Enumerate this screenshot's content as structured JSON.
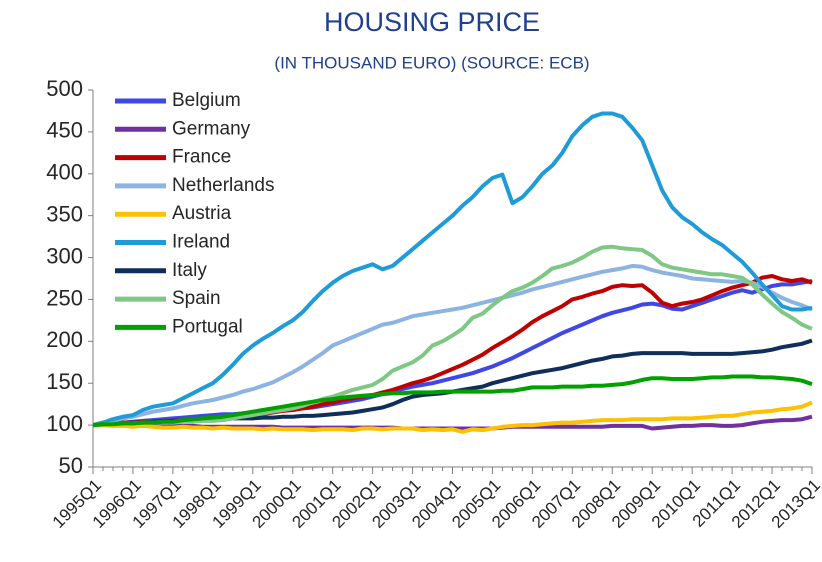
{
  "chart_data": {
    "type": "line",
    "title": "HOUSING PRICE",
    "subtitle": "(IN THOUSAND EURO) (SOURCE: ECB)",
    "categories": [
      "1995Q1",
      null,
      null,
      null,
      "1996Q1",
      null,
      null,
      null,
      "1997Q1",
      null,
      null,
      null,
      "1998Q1",
      null,
      null,
      null,
      "1999Q1",
      null,
      null,
      null,
      "2000Q1",
      null,
      null,
      null,
      "2001Q1",
      null,
      null,
      null,
      "2002Q1",
      null,
      null,
      null,
      "2003Q1",
      null,
      null,
      null,
      "2004Q1",
      null,
      null,
      null,
      "2005Q1",
      null,
      null,
      null,
      "2006Q1",
      null,
      null,
      null,
      "2007Q1",
      null,
      null,
      null,
      "2008Q1",
      null,
      null,
      null,
      "2009Q1",
      null,
      null,
      null,
      "2010Q1",
      null,
      null,
      null,
      "2011Q1",
      null,
      null,
      null,
      "2012Q1",
      null,
      null,
      null,
      "2013Q1"
    ],
    "ylim": [
      50,
      500
    ],
    "yticks": [
      50,
      100,
      150,
      200,
      250,
      300,
      350,
      400,
      450,
      500
    ],
    "grid": false,
    "legend": "top-left",
    "series": [
      {
        "name": "Belgium",
        "color": "#3f48e6",
        "values": [
          100,
          101,
          102,
          103,
          104,
          105,
          106,
          107,
          108,
          109,
          110,
          111,
          112,
          113,
          113,
          114,
          115,
          116,
          117,
          118,
          119,
          120,
          121,
          123,
          125,
          127,
          129,
          131,
          134,
          137,
          140,
          143,
          146,
          148,
          150,
          153,
          156,
          159,
          162,
          166,
          170,
          175,
          180,
          186,
          192,
          198,
          204,
          210,
          215,
          220,
          225,
          230,
          234,
          237,
          240,
          244,
          245,
          243,
          239,
          238,
          242,
          246,
          250,
          254,
          258,
          261,
          258,
          262,
          266,
          268,
          268,
          270,
          272
        ]
      },
      {
        "name": "Germany",
        "color": "#7030a0",
        "values": [
          100,
          100,
          100,
          100,
          100,
          100,
          99,
          99,
          99,
          99,
          99,
          98,
          98,
          98,
          98,
          98,
          98,
          98,
          98,
          97,
          97,
          97,
          97,
          97,
          97,
          97,
          97,
          97,
          97,
          97,
          97,
          96,
          96,
          96,
          96,
          96,
          96,
          96,
          96,
          96,
          96,
          97,
          98,
          98,
          98,
          98,
          98,
          98,
          98,
          98,
          98,
          98,
          99,
          99,
          99,
          99,
          96,
          97,
          98,
          99,
          99,
          100,
          100,
          99,
          99,
          100,
          102,
          104,
          105,
          106,
          106,
          107,
          110
        ]
      },
      {
        "name": "France",
        "color": "#c00000",
        "values": [
          100,
          101,
          102,
          103,
          103,
          104,
          104,
          105,
          105,
          106,
          106,
          107,
          107,
          108,
          109,
          110,
          111,
          113,
          115,
          117,
          118,
          120,
          122,
          125,
          127,
          130,
          132,
          134,
          136,
          139,
          142,
          146,
          150,
          153,
          157,
          162,
          167,
          172,
          178,
          184,
          192,
          199,
          206,
          214,
          223,
          230,
          236,
          242,
          250,
          253,
          257,
          260,
          265,
          267,
          266,
          267,
          258,
          246,
          242,
          245,
          247,
          250,
          255,
          260,
          264,
          267,
          270,
          276,
          278,
          274,
          272,
          274,
          270
        ]
      },
      {
        "name": "Netherlands",
        "color": "#8db3e2",
        "values": [
          100,
          103,
          106,
          108,
          110,
          113,
          116,
          118,
          120,
          123,
          126,
          128,
          130,
          133,
          136,
          140,
          143,
          147,
          151,
          157,
          163,
          170,
          178,
          186,
          195,
          200,
          205,
          210,
          215,
          220,
          222,
          226,
          230,
          232,
          234,
          236,
          238,
          240,
          243,
          246,
          249,
          252,
          255,
          258,
          262,
          265,
          268,
          271,
          274,
          277,
          280,
          283,
          285,
          287,
          290,
          289,
          285,
          282,
          280,
          278,
          275,
          274,
          273,
          272,
          271,
          272,
          270,
          265,
          258,
          252,
          247,
          243,
          238
        ]
      },
      {
        "name": "Austria",
        "color": "#ffc000",
        "values": [
          100,
          100,
          99,
          99,
          98,
          99,
          98,
          97,
          97,
          98,
          97,
          97,
          96,
          97,
          96,
          96,
          96,
          95,
          96,
          95,
          95,
          95,
          94,
          95,
          95,
          95,
          94,
          96,
          96,
          95,
          96,
          96,
          96,
          94,
          95,
          94,
          95,
          92,
          95,
          94,
          96,
          98,
          99,
          100,
          100,
          101,
          102,
          103,
          103,
          104,
          105,
          106,
          106,
          106,
          107,
          107,
          107,
          107,
          108,
          108,
          108,
          109,
          110,
          111,
          111,
          113,
          115,
          116,
          117,
          119,
          120,
          122,
          127
        ]
      },
      {
        "name": "Ireland",
        "color": "#1f9bd7",
        "values": [
          100,
          103,
          107,
          110,
          112,
          118,
          122,
          124,
          126,
          132,
          138,
          144,
          150,
          160,
          172,
          185,
          195,
          203,
          210,
          218,
          225,
          235,
          248,
          260,
          270,
          278,
          284,
          288,
          292,
          286,
          290,
          300,
          310,
          320,
          330,
          340,
          350,
          362,
          372,
          385,
          395,
          399,
          365,
          372,
          385,
          400,
          410,
          425,
          445,
          458,
          468,
          472,
          472,
          468,
          455,
          440,
          410,
          380,
          360,
          348,
          340,
          330,
          322,
          315,
          305,
          295,
          282,
          268,
          255,
          242,
          238,
          238,
          240
        ]
      },
      {
        "name": "Italy",
        "color": "#0f2e5a",
        "values": [
          100,
          101,
          102,
          102,
          103,
          103,
          104,
          104,
          105,
          105,
          106,
          106,
          107,
          107,
          108,
          108,
          108,
          109,
          109,
          110,
          110,
          111,
          111,
          112,
          113,
          114,
          115,
          117,
          119,
          121,
          125,
          130,
          134,
          136,
          137,
          138,
          140,
          142,
          144,
          146,
          150,
          153,
          156,
          159,
          162,
          164,
          166,
          168,
          171,
          174,
          177,
          179,
          182,
          183,
          185,
          186,
          186,
          186,
          186,
          186,
          185,
          185,
          185,
          185,
          185,
          186,
          187,
          188,
          190,
          193,
          195,
          197,
          201
        ]
      },
      {
        "name": "Spain",
        "color": "#7fc784",
        "values": [
          100,
          101,
          102,
          102,
          102,
          103,
          103,
          103,
          103,
          104,
          104,
          105,
          105,
          106,
          108,
          110,
          112,
          114,
          116,
          118,
          120,
          123,
          127,
          131,
          134,
          138,
          142,
          145,
          148,
          155,
          165,
          170,
          175,
          183,
          195,
          200,
          207,
          215,
          228,
          233,
          243,
          252,
          260,
          264,
          270,
          278,
          287,
          290,
          294,
          300,
          307,
          312,
          313,
          311,
          310,
          309,
          302,
          292,
          288,
          286,
          284,
          282,
          280,
          280,
          278,
          276,
          268,
          256,
          245,
          235,
          228,
          220,
          215
        ]
      },
      {
        "name": "Portugal",
        "color": "#00a000",
        "values": [
          100,
          101,
          101,
          102,
          102,
          103,
          103,
          104,
          104,
          106,
          107,
          108,
          109,
          110,
          112,
          114,
          116,
          118,
          120,
          122,
          124,
          126,
          128,
          130,
          131,
          133,
          134,
          135,
          136,
          137,
          138,
          138,
          139,
          139,
          139,
          140,
          140,
          140,
          140,
          140,
          140,
          141,
          141,
          143,
          145,
          145,
          145,
          146,
          146,
          146,
          147,
          147,
          148,
          149,
          151,
          154,
          156,
          156,
          155,
          155,
          155,
          156,
          157,
          157,
          158,
          158,
          158,
          157,
          157,
          156,
          155,
          153,
          149
        ]
      }
    ]
  }
}
